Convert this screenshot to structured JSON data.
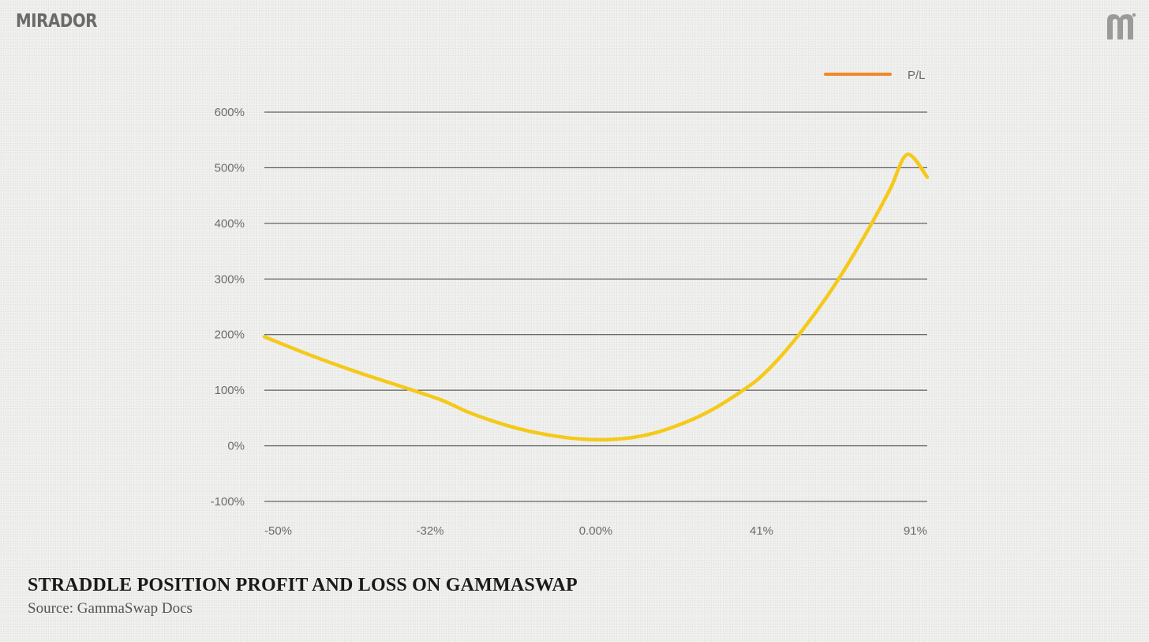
{
  "brand": {
    "logo_text": "MIRADOR",
    "mark_icon": "mirador-m-icon"
  },
  "caption": {
    "title": "STRADDLE POSITION PROFIT AND LOSS ON GAMMASWAP",
    "source": "Source: GammaSwap Docs"
  },
  "chart_data": {
    "type": "line",
    "title": "",
    "xlabel": "",
    "ylabel": "",
    "x_tick_labels": [
      "-50%",
      "-32%",
      "0.00%",
      "41%",
      "91%"
    ],
    "y_tick_labels": [
      "600%",
      "500%",
      "400%",
      "300%",
      "200%",
      "100%",
      "0%",
      "-100%"
    ],
    "y_ticks": [
      600,
      500,
      400,
      300,
      200,
      100,
      0,
      -100
    ],
    "xlim": [
      -50,
      91
    ],
    "ylim": [
      -100,
      600
    ],
    "grid": "horizontal",
    "legend_position": "top-right",
    "series": [
      {
        "name": "P/L",
        "color": "#f5c919",
        "legend_color": "#f08a2a",
        "x": [
          -50,
          -45,
          -40,
          -35,
          -30,
          -25,
          -20,
          -15,
          -10,
          -5,
          0,
          5,
          10,
          15,
          20,
          25,
          30,
          35,
          40,
          45,
          50,
          55,
          60,
          65,
          70,
          75,
          80,
          85,
          91
        ],
        "y": [
          196,
          163,
          133,
          106,
          83,
          62,
          45,
          31,
          21,
          14,
          11,
          12,
          16,
          24,
          36,
          51,
          70,
          93,
          119,
          149,
          183,
          221,
          262,
          307,
          356,
          408,
          464,
          524,
          483
        ]
      }
    ]
  }
}
